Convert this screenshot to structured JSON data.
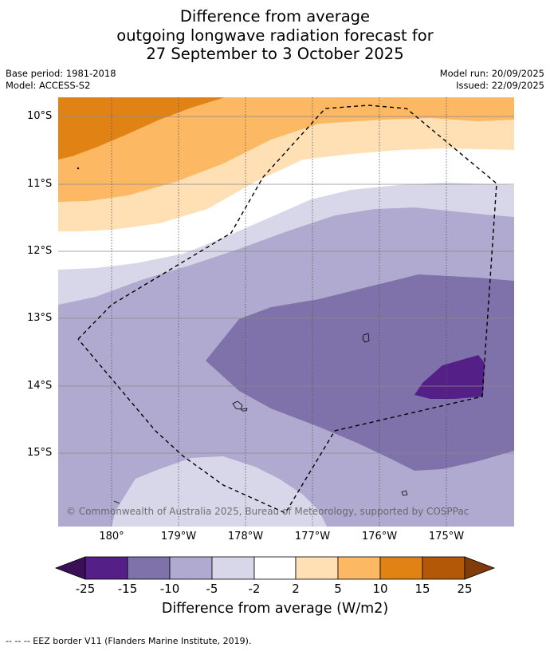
{
  "title": {
    "line1": "Difference from average",
    "line2": "outgoing longwave radiation forecast for",
    "line3": "27 September to 3 October 2025"
  },
  "meta": {
    "base_period": "Base period: 1981-2018",
    "model": "Model: ACCESS-S2",
    "model_run": "Model run: 20/09/2025",
    "issued": "Issued: 22/09/2025"
  },
  "axes": {
    "lat_labels": [
      "10°S",
      "11°S",
      "12°S",
      "13°S",
      "14°S",
      "15°S"
    ],
    "lon_labels": [
      "180°",
      "179°W",
      "178°W",
      "177°W",
      "176°W",
      "175°W"
    ]
  },
  "copyright": "© Commonwealth of Australia 2025, Bureau of Meteorology, supported by COSPPac",
  "colorbar": {
    "ticks": [
      "-25",
      "-15",
      "-10",
      "-5",
      "-2",
      "2",
      "5",
      "10",
      "15",
      "25"
    ],
    "title": "Difference from average (W/m2)",
    "colors": {
      "lt_minus25": "#3c1058",
      "m25_m15": "#542088",
      "m15_m10": "#7f71aa",
      "m10_m5": "#b1aad0",
      "m5_m2": "#d8d7ea",
      "m2_2": "#ffffff",
      "p2_5": "#fee0b4",
      "p5_10": "#fdb863",
      "p10_15": "#e08214",
      "p15_25": "#b35806",
      "gt_25": "#7f3b08"
    }
  },
  "legend": {
    "text": "--  --  -- EEZ border V11 (Flanders Marine Institute, 2019)."
  }
}
